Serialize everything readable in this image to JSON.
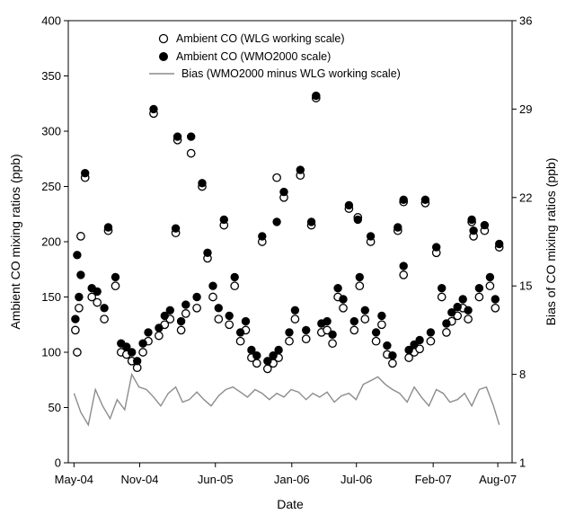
{
  "chart_data": {
    "type": "scatter",
    "xlabel": "Date",
    "ylabel": "Ambient CO mixing ratios (ppb)",
    "y2label": "Bias of CO mixing ratios (ppb)",
    "x_tick_labels": [
      "May-04",
      "Nov-04",
      "Jun-05",
      "Jan-06",
      "Jul-06",
      "Feb-07",
      "Aug-07"
    ],
    "x_tick_dates": [
      "2004-05-01",
      "2004-11-01",
      "2005-06-01",
      "2006-01-01",
      "2006-07-01",
      "2007-02-01",
      "2007-08-01"
    ],
    "xlim": [
      "2004-04-15",
      "2007-09-10"
    ],
    "ylim": [
      0,
      400
    ],
    "y_ticks": [
      0,
      50,
      100,
      150,
      200,
      250,
      300,
      350,
      400
    ],
    "y2lim": [
      1,
      36
    ],
    "y2_ticks": [
      1,
      8,
      15,
      22,
      29,
      36
    ],
    "grid": false,
    "legend_position": "top-center",
    "series": [
      {
        "name": "Ambient CO (WLG working scale)",
        "marker": "open-circle",
        "axis": "left",
        "x": [
          "2004-05-05",
          "2004-05-15",
          "2004-06-01",
          "2004-06-20",
          "2004-07-05",
          "2004-07-25",
          "2004-08-05",
          "2004-08-25",
          "2004-09-10",
          "2004-09-25",
          "2004-10-10",
          "2004-10-25",
          "2004-11-10",
          "2004-11-25",
          "2004-12-10",
          "2004-12-25",
          "2005-01-10",
          "2005-01-25",
          "2005-02-10",
          "2005-02-25",
          "2005-03-10",
          "2005-03-25",
          "2005-04-10",
          "2005-04-25",
          "2005-05-10",
          "2005-05-25",
          "2005-06-10",
          "2005-06-25",
          "2005-07-10",
          "2005-07-25",
          "2005-08-10",
          "2005-08-25",
          "2005-09-10",
          "2005-09-25",
          "2005-10-10",
          "2005-10-25",
          "2005-11-10",
          "2005-11-25",
          "2005-12-10",
          "2005-12-25",
          "2006-01-10",
          "2006-01-25",
          "2006-02-10",
          "2006-02-25",
          "2006-03-10",
          "2006-03-25",
          "2006-04-10",
          "2006-04-25",
          "2006-05-10",
          "2006-05-25",
          "2006-06-10",
          "2006-06-25",
          "2006-07-10",
          "2006-07-25",
          "2006-08-10",
          "2006-08-25",
          "2006-09-10",
          "2006-09-25",
          "2006-10-10",
          "2006-10-25",
          "2006-11-10",
          "2006-11-25",
          "2006-12-10",
          "2006-12-25",
          "2007-01-10",
          "2007-01-25",
          "2007-02-10",
          "2007-02-25",
          "2007-03-10",
          "2007-03-25",
          "2007-04-10",
          "2007-04-25",
          "2007-05-10",
          "2007-05-25",
          "2007-06-10",
          "2007-06-25",
          "2007-07-10",
          "2007-07-25",
          "2007-08-05"
        ],
        "y": [
          120,
          140,
          258,
          150,
          145,
          130,
          210,
          160,
          100,
          98,
          92,
          86,
          100,
          110,
          316,
          115,
          125,
          130,
          208,
          120,
          135,
          280,
          140,
          250,
          185,
          150,
          130,
          215,
          125,
          160,
          110,
          120,
          95,
          90,
          200,
          85,
          90,
          95,
          240,
          110,
          130,
          260,
          112,
          215,
          330,
          118,
          120,
          108,
          150,
          140,
          230,
          120,
          160,
          130,
          200,
          110,
          125,
          98,
          90,
          210,
          170,
          95,
          100,
          103,
          235,
          110,
          190,
          150,
          118,
          128,
          133,
          140,
          130,
          205,
          150,
          210,
          160,
          140,
          195
        ],
        "y_extra": [
          [
            2004,
            5,
            10,
            100
          ],
          [
            2004,
            5,
            20,
            205
          ],
          [
            2005,
            2,
            15,
            292
          ],
          [
            2005,
            11,
            20,
            258
          ],
          [
            2006,
            7,
            5,
            222
          ],
          [
            2006,
            11,
            10,
            236
          ],
          [
            2007,
            5,
            20,
            218
          ]
        ]
      },
      {
        "name": "Ambient CO (WMO2000 scale)",
        "marker": "filled-circle",
        "axis": "left",
        "x": [
          "2004-05-05",
          "2004-05-15",
          "2004-06-01",
          "2004-06-20",
          "2004-07-05",
          "2004-07-25",
          "2004-08-05",
          "2004-08-25",
          "2004-09-10",
          "2004-09-25",
          "2004-10-10",
          "2004-10-25",
          "2004-11-10",
          "2004-11-25",
          "2004-12-10",
          "2004-12-25",
          "2005-01-10",
          "2005-01-25",
          "2005-02-10",
          "2005-02-25",
          "2005-03-10",
          "2005-03-25",
          "2005-04-10",
          "2005-04-25",
          "2005-05-10",
          "2005-05-25",
          "2005-06-10",
          "2005-06-25",
          "2005-07-10",
          "2005-07-25",
          "2005-08-10",
          "2005-08-25",
          "2005-09-10",
          "2005-09-25",
          "2005-10-10",
          "2005-10-25",
          "2005-11-10",
          "2005-11-25",
          "2005-12-10",
          "2005-12-25",
          "2006-01-10",
          "2006-01-25",
          "2006-02-10",
          "2006-02-25",
          "2006-03-10",
          "2006-03-25",
          "2006-04-10",
          "2006-04-25",
          "2006-05-10",
          "2006-05-25",
          "2006-06-10",
          "2006-06-25",
          "2006-07-10",
          "2006-07-25",
          "2006-08-10",
          "2006-08-25",
          "2006-09-10",
          "2006-09-25",
          "2006-10-10",
          "2006-10-25",
          "2006-11-10",
          "2006-11-25",
          "2006-12-10",
          "2006-12-25",
          "2007-01-10",
          "2007-01-25",
          "2007-02-10",
          "2007-02-25",
          "2007-03-10",
          "2007-03-25",
          "2007-04-10",
          "2007-04-25",
          "2007-05-10",
          "2007-05-25",
          "2007-06-10",
          "2007-06-25",
          "2007-07-10",
          "2007-07-25",
          "2007-08-05"
        ],
        "y": [
          130,
          150,
          262,
          158,
          155,
          140,
          213,
          168,
          108,
          105,
          100,
          92,
          108,
          118,
          320,
          122,
          133,
          138,
          212,
          128,
          143,
          295,
          150,
          253,
          190,
          160,
          140,
          220,
          133,
          168,
          118,
          128,
          102,
          97,
          205,
          92,
          97,
          102,
          245,
          118,
          138,
          265,
          120,
          218,
          332,
          126,
          128,
          116,
          158,
          148,
          233,
          128,
          168,
          138,
          205,
          118,
          133,
          106,
          97,
          213,
          178,
          102,
          107,
          111,
          238,
          118,
          195,
          158,
          126,
          136,
          141,
          148,
          138,
          210,
          158,
          215,
          168,
          148,
          198
        ],
        "y_extra": [
          [
            2004,
            5,
            10,
            188
          ],
          [
            2004,
            5,
            20,
            170
          ],
          [
            2005,
            2,
            15,
            295
          ],
          [
            2005,
            11,
            20,
            218
          ],
          [
            2006,
            7,
            5,
            220
          ],
          [
            2006,
            11,
            10,
            238
          ],
          [
            2007,
            5,
            20,
            220
          ]
        ]
      },
      {
        "name": "Bias (WMO2000 minus WLG working scale)",
        "marker": "line",
        "axis": "right",
        "x": [
          "2004-05-01",
          "2004-05-20",
          "2004-06-10",
          "2004-06-30",
          "2004-07-20",
          "2004-08-10",
          "2004-08-30",
          "2004-09-20",
          "2004-10-10",
          "2004-10-30",
          "2004-11-20",
          "2004-12-10",
          "2004-12-30",
          "2005-01-20",
          "2005-02-10",
          "2005-03-01",
          "2005-03-20",
          "2005-04-10",
          "2005-04-30",
          "2005-05-20",
          "2005-06-10",
          "2005-06-30",
          "2005-07-20",
          "2005-08-10",
          "2005-08-30",
          "2005-09-20",
          "2005-10-10",
          "2005-10-30",
          "2005-11-20",
          "2005-12-10",
          "2005-12-30",
          "2006-01-20",
          "2006-02-10",
          "2006-03-01",
          "2006-03-20",
          "2006-04-10",
          "2006-04-30",
          "2006-05-20",
          "2006-06-10",
          "2006-06-30",
          "2006-07-20",
          "2006-08-10",
          "2006-08-30",
          "2006-09-20",
          "2006-10-10",
          "2006-10-30",
          "2006-11-20",
          "2006-12-10",
          "2006-12-30",
          "2007-01-20",
          "2007-02-10",
          "2007-03-01",
          "2007-03-20",
          "2007-04-10",
          "2007-04-30",
          "2007-05-20",
          "2007-06-10",
          "2007-06-30",
          "2007-07-20",
          "2007-08-05"
        ],
        "y": [
          6.5,
          5.0,
          4.0,
          6.8,
          5.5,
          4.5,
          6.0,
          5.2,
          8.0,
          7.0,
          6.8,
          6.2,
          5.5,
          6.5,
          7.0,
          5.8,
          6.0,
          6.6,
          6.0,
          5.5,
          6.3,
          6.8,
          7.0,
          6.6,
          6.2,
          6.8,
          6.5,
          6.0,
          6.5,
          6.2,
          6.8,
          6.6,
          6.0,
          6.5,
          6.2,
          6.6,
          5.8,
          6.3,
          6.5,
          6.0,
          7.2,
          7.5,
          7.8,
          7.2,
          6.8,
          6.5,
          5.8,
          7.0,
          6.2,
          5.5,
          6.8,
          6.5,
          5.8,
          6.0,
          6.5,
          5.5,
          6.8,
          7.0,
          5.5,
          4.0
        ]
      }
    ]
  }
}
